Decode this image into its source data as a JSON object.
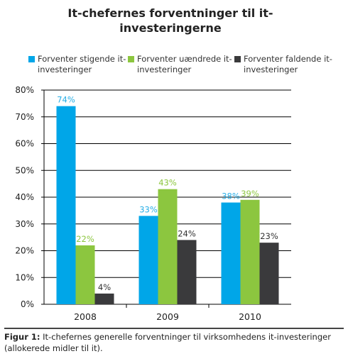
{
  "chart_data": {
    "type": "bar",
    "title": "It-chefernes forventninger til it-investeringerne",
    "categories": [
      "2008",
      "2009",
      "2010"
    ],
    "series": [
      {
        "name": "Forventer stigende it-investeringer",
        "values": [
          74,
          33,
          38
        ],
        "labels": [
          "74%",
          "33%",
          "38%"
        ],
        "color": "#00a6e8",
        "label_color": "#27aee6"
      },
      {
        "name": "Forventer uændrede it-investeringer",
        "values": [
          22,
          43,
          39
        ],
        "labels": [
          "22%",
          "43%",
          "39%"
        ],
        "color": "#8cc63f",
        "label_color": "#8cc63f"
      },
      {
        "name": "Forventer faldende it-investeringer",
        "values": [
          4,
          24,
          23
        ],
        "labels": [
          "4%",
          "24%",
          "23%"
        ],
        "color": "#3a3a3c",
        "label_color": "#333333"
      }
    ],
    "y_ticks": [
      "0%",
      "10%",
      "20%",
      "30%",
      "40%",
      "50%",
      "60%",
      "70%",
      "80%"
    ],
    "ylim": [
      0,
      80
    ],
    "grid": true,
    "legend_position": "top"
  },
  "caption": {
    "label": "Figur 1:",
    "text": " It-chefernes generelle forventninger til virksomhedens it-investeringer (allokerede midler til it)."
  }
}
